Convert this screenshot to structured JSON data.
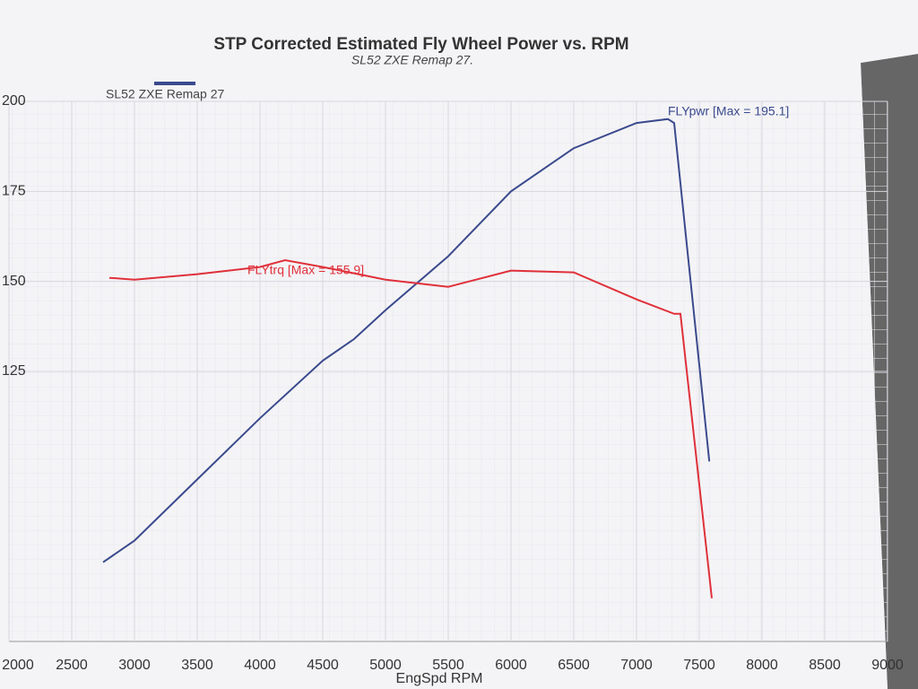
{
  "chart_data": {
    "type": "line",
    "title": "STP Corrected Estimated Fly Wheel Power vs. RPM",
    "subtitle": "SL52 ZXE Remap 27.",
    "legend": "SL52 ZXE Remap 27",
    "x_label": "EngSpd RPM",
    "xlim": [
      2000,
      9000
    ],
    "xticks": [
      2000,
      2500,
      3000,
      3500,
      4000,
      4500,
      5000,
      5500,
      6000,
      6500,
      7000,
      7500,
      8000,
      8500,
      9000
    ],
    "ylim": [
      50,
      200
    ],
    "yticks": [
      125,
      150,
      175,
      200
    ],
    "grid": true,
    "series": [
      {
        "color": "#3a4a8c",
        "x": [
          2750,
          3000,
          3500,
          4000,
          4500,
          4750,
          5000,
          5500,
          6000,
          6500,
          7000,
          7250,
          7300,
          7580
        ],
        "values": [
          72,
          78,
          95,
          112,
          128,
          134,
          142,
          157,
          175,
          187,
          194,
          195.1,
          194,
          100
        ]
      },
      {
        "color": "#e0303a",
        "x": [
          2800,
          3000,
          3500,
          4000,
          4200,
          4500,
          5000,
          5500,
          6000,
          6500,
          7000,
          7300,
          7350,
          7600
        ],
        "values": [
          151,
          150.5,
          152,
          154,
          155.9,
          154,
          150.5,
          148.5,
          153,
          152.5,
          145,
          141,
          141,
          62
        ]
      }
    ],
    "annotations": [
      {
        "text": "FLYpwr [Max = 195.1]",
        "x": 7250,
        "y": 197
      },
      {
        "text": "FLYtrq [Max = 155.9]",
        "x": 3900,
        "y": 153
      }
    ]
  }
}
